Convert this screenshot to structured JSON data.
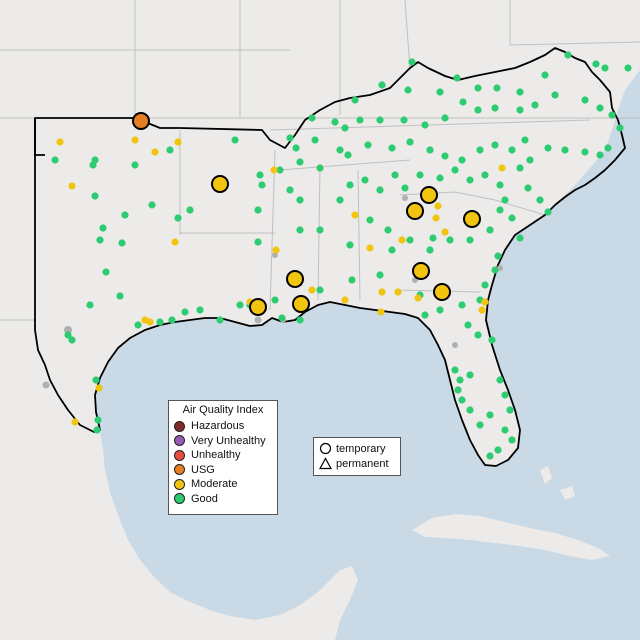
{
  "legend": {
    "title": "Air Quality Index",
    "categories": [
      {
        "label": "Hazardous",
        "color": "#7e2a2a"
      },
      {
        "label": "Very Unhealthy",
        "color": "#9b59b6"
      },
      {
        "label": "Unhealthy",
        "color": "#e74c3c"
      },
      {
        "label": "USG",
        "color": "#e67e22"
      },
      {
        "label": "Moderate",
        "color": "#f1c40f"
      },
      {
        "label": "Good",
        "color": "#2ecc71"
      }
    ]
  },
  "monitor_types": [
    {
      "label": "temporary",
      "icon": "circle-icon"
    },
    {
      "label": "permanent",
      "icon": "triangle-icon"
    }
  ],
  "colors": {
    "water": "#c9d9e6",
    "land": "#ecebea",
    "state_border": "#c0c0c0",
    "highlight_border": "#000000",
    "no_data": "#b0b0b0"
  }
}
